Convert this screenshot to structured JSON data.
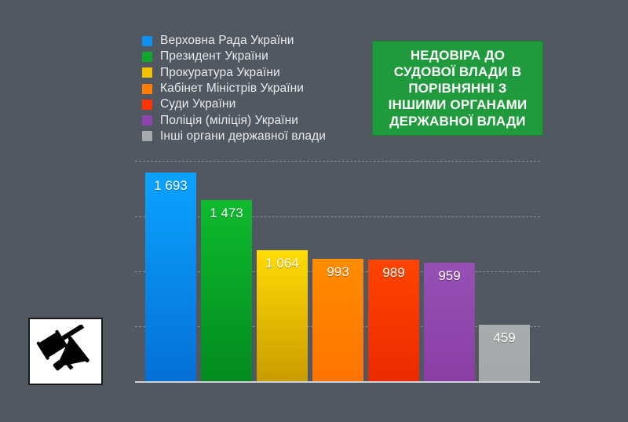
{
  "title": "НЕДОВІРА ДО\nСУДОВОЇ ВЛАДИ В\nПОРІВНЯННІ З\nІНШИМИ ОРГАНАМИ\nДЕРЖАВНОЇ ВЛАДИ",
  "legend": [
    {
      "label": "Верховна Рада України",
      "color": "#0f8ff0"
    },
    {
      "label": "Президент України",
      "color": "#0fa82a"
    },
    {
      "label": "Прокуратура України",
      "color": "#f2c400"
    },
    {
      "label": "Кабінет Міністрів України",
      "color": "#ff7f00"
    },
    {
      "label": "Суди України",
      "color": "#ff3300"
    },
    {
      "label": "Поліція (міліція) України",
      "color": "#8e44ad"
    },
    {
      "label": "Інші органи державної влади",
      "color": "#a7abac"
    }
  ],
  "bars": [
    {
      "label": "1 693",
      "top": "#0aa3ff",
      "bottom": "#0670d6"
    },
    {
      "label": "1 473",
      "top": "#0ebb2e",
      "bottom": "#048a20"
    },
    {
      "label": "1 064",
      "top": "#ffdc05",
      "bottom": "#c99c00"
    },
    {
      "label": "993",
      "top": "#ff8c00",
      "bottom": "#ff7300"
    },
    {
      "label": "989",
      "top": "#ff4400",
      "bottom": "#ec2a00"
    },
    {
      "label": "959",
      "top": "#9650b5",
      "bottom": "#8a3ea5"
    },
    {
      "label": "459",
      "top": "#a8acad",
      "bottom": "#a4a8a9"
    }
  ],
  "logo": {
    "icon": "gavel-megaphone-icon"
  },
  "chart_data": {
    "type": "bar",
    "title": "Недовіра до судової влади в порівнянні з іншими органами державної влади",
    "categories": [
      "Верховна Рада України",
      "Президент України",
      "Прокуратура України",
      "Кабінет Міністрів України",
      "Суди України",
      "Поліція (міліція) України",
      "Інші органи державної влади"
    ],
    "values": [
      1693,
      1473,
      1064,
      993,
      989,
      959,
      459
    ],
    "xlabel": "",
    "ylabel": "",
    "ylim": [
      0,
      1800
    ],
    "grid": true,
    "legend_position": "top-left",
    "data_labels": [
      "1 693",
      "1 473",
      "1 064",
      "993",
      "989",
      "959",
      "459"
    ]
  }
}
